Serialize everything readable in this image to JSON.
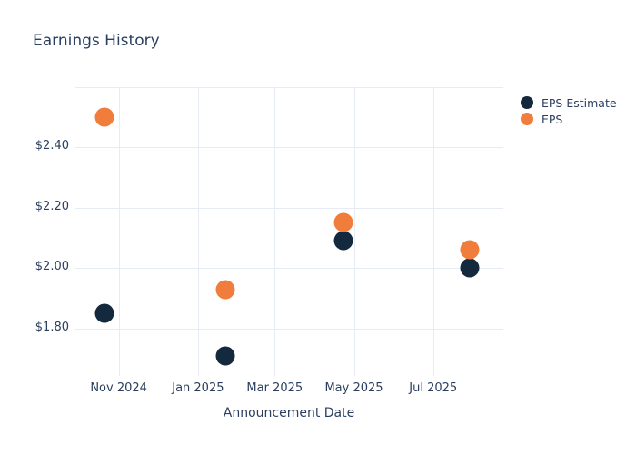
{
  "title": "Earnings History",
  "x_axis_title": "Announcement Date",
  "colors": {
    "eps_estimate": "#14283e",
    "eps": "#f07d3c",
    "gridline": "#e6ebf5",
    "text": "#2a3f5f",
    "background": "#ffffff"
  },
  "legend": {
    "position": "top-right",
    "items": [
      {
        "label": "EPS Estimate",
        "color": "#14283e"
      },
      {
        "label": "EPS",
        "color": "#f07d3c"
      }
    ]
  },
  "chart_data": {
    "type": "scatter",
    "title": "Earnings History",
    "xlabel": "Announcement Date",
    "ylabel": "",
    "grid": true,
    "legend_position": "top-right",
    "x_range": [
      "2024-09-28",
      "2025-08-24"
    ],
    "y_range": [
      1.644,
      2.595
    ],
    "x_ticks": [
      {
        "date": "2024-11-01",
        "label": "Nov 2024"
      },
      {
        "date": "2025-01-01",
        "label": "Jan 2025"
      },
      {
        "date": "2025-03-01",
        "label": "Mar 2025"
      },
      {
        "date": "2025-05-01",
        "label": "May 2025"
      },
      {
        "date": "2025-07-01",
        "label": "Jul 2025"
      }
    ],
    "y_ticks": [
      {
        "value": 1.8,
        "label": "$1.80"
      },
      {
        "value": 2.0,
        "label": "$2.00"
      },
      {
        "value": 2.2,
        "label": "$2.20"
      },
      {
        "value": 2.4,
        "label": "$2.40"
      }
    ],
    "series": [
      {
        "name": "EPS Estimate",
        "color": "#14283e",
        "points": [
          {
            "date": "2024-10-21",
            "value": 1.85
          },
          {
            "date": "2025-01-22",
            "value": 1.71
          },
          {
            "date": "2025-04-23",
            "value": 2.09
          },
          {
            "date": "2025-07-29",
            "value": 2.0
          }
        ]
      },
      {
        "name": "EPS",
        "color": "#f07d3c",
        "points": [
          {
            "date": "2024-10-21",
            "value": 2.5
          },
          {
            "date": "2025-01-22",
            "value": 1.93
          },
          {
            "date": "2025-04-23",
            "value": 2.15
          },
          {
            "date": "2025-07-29",
            "value": 2.06
          }
        ]
      }
    ]
  }
}
